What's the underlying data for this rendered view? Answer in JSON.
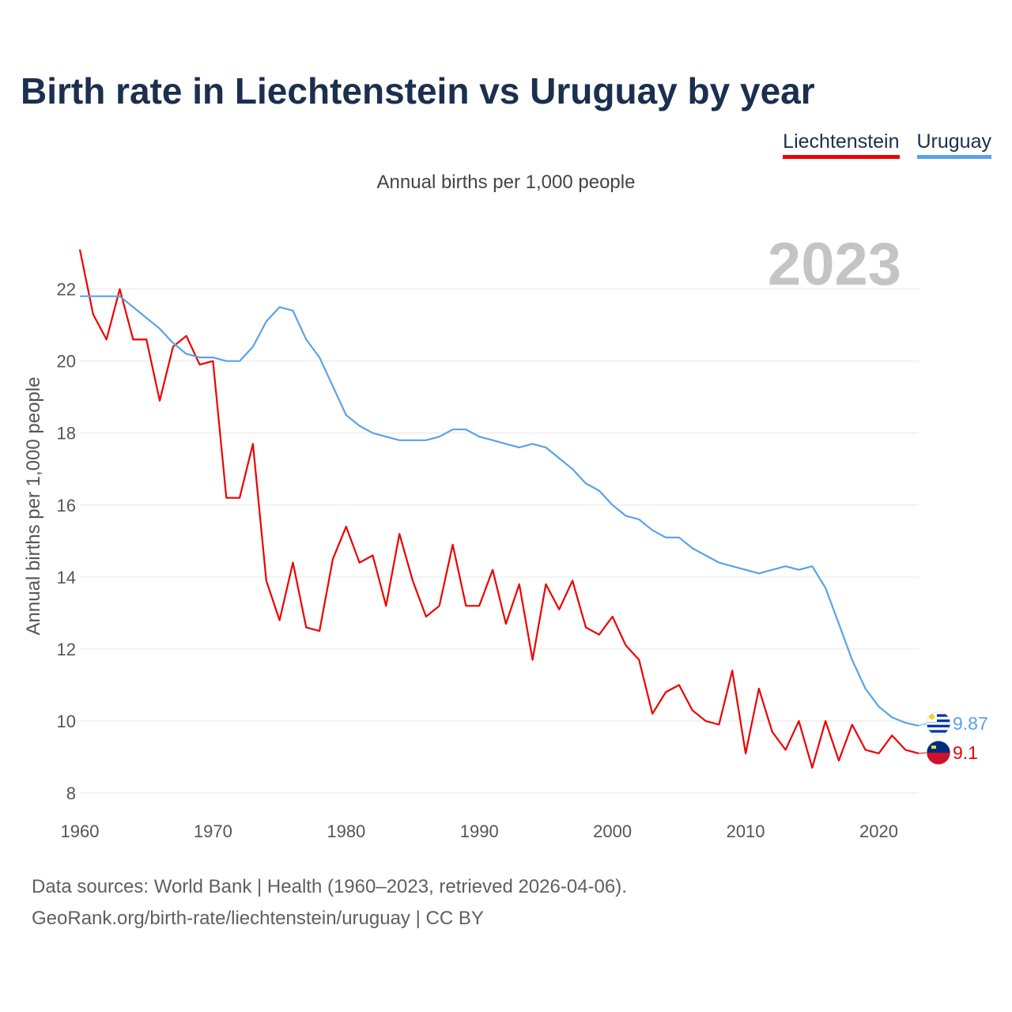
{
  "title": "Birth rate in Liechtenstein vs Uruguay by year",
  "subtitle": "Annual births per 1,000 people",
  "legend": [
    {
      "name": "Liechtenstein",
      "color": "#ee0000"
    },
    {
      "name": "Uruguay",
      "color": "#5aa2e8"
    }
  ],
  "year_label": "2023",
  "footer": {
    "source": "Data sources: World Bank | Health (1960–2023, retrieved 2026-04-06).",
    "url": "GeoRank.org/birth-rate/liechtenstein/uruguay | CC BY"
  },
  "chart_data": {
    "type": "line",
    "title": "Birth rate in Liechtenstein vs Uruguay by year",
    "ylabel": "Annual births per 1,000 people",
    "xlabel": "",
    "xlim": [
      1960,
      2023
    ],
    "ylim": [
      8,
      23.2
    ],
    "yticks": [
      8,
      10,
      12,
      14,
      16,
      18,
      20,
      22
    ],
    "xticks": [
      1960,
      1970,
      1980,
      1990,
      2000,
      2010,
      2020
    ],
    "grid": true,
    "x": [
      1960,
      1961,
      1962,
      1963,
      1964,
      1965,
      1966,
      1967,
      1968,
      1969,
      1970,
      1971,
      1972,
      1973,
      1974,
      1975,
      1976,
      1977,
      1978,
      1979,
      1980,
      1981,
      1982,
      1983,
      1984,
      1985,
      1986,
      1987,
      1988,
      1989,
      1990,
      1991,
      1992,
      1993,
      1994,
      1995,
      1996,
      1997,
      1998,
      1999,
      2000,
      2001,
      2002,
      2003,
      2004,
      2005,
      2006,
      2007,
      2008,
      2009,
      2010,
      2011,
      2012,
      2013,
      2014,
      2015,
      2016,
      2017,
      2018,
      2019,
      2020,
      2021,
      2022,
      2023
    ],
    "series": [
      {
        "name": "Liechtenstein",
        "color": "#ee0000",
        "end_label": "9.1",
        "values": [
          23.1,
          21.3,
          20.6,
          22.0,
          20.6,
          20.6,
          18.9,
          20.4,
          20.7,
          19.9,
          20.0,
          16.2,
          16.2,
          17.7,
          13.9,
          12.8,
          14.4,
          12.6,
          12.5,
          14.5,
          15.4,
          14.4,
          14.6,
          13.2,
          15.2,
          13.9,
          12.9,
          13.2,
          14.9,
          13.2,
          13.2,
          14.2,
          12.7,
          13.8,
          11.7,
          13.8,
          13.1,
          13.9,
          12.6,
          12.4,
          12.9,
          12.1,
          11.7,
          10.2,
          10.8,
          11.0,
          10.3,
          10.0,
          9.9,
          11.4,
          9.1,
          10.9,
          9.7,
          9.2,
          10.0,
          8.7,
          10.0,
          8.9,
          9.9,
          9.2,
          9.1,
          9.6,
          9.2,
          9.1
        ]
      },
      {
        "name": "Uruguay",
        "color": "#5aa2e8",
        "end_label": "9.87",
        "values": [
          21.8,
          21.8,
          21.8,
          21.8,
          21.5,
          21.2,
          20.9,
          20.5,
          20.2,
          20.1,
          20.1,
          20.0,
          20.0,
          20.4,
          21.1,
          21.5,
          21.4,
          20.6,
          20.1,
          19.3,
          18.5,
          18.2,
          18.0,
          17.9,
          17.8,
          17.8,
          17.8,
          17.9,
          18.1,
          18.1,
          17.9,
          17.8,
          17.7,
          17.6,
          17.7,
          17.6,
          17.3,
          17.0,
          16.6,
          16.4,
          16.0,
          15.7,
          15.6,
          15.3,
          15.1,
          15.1,
          14.8,
          14.6,
          14.4,
          14.3,
          14.2,
          14.1,
          14.2,
          14.3,
          14.2,
          14.3,
          13.7,
          12.7,
          11.7,
          10.9,
          10.4,
          10.1,
          9.95,
          9.87
        ]
      }
    ]
  }
}
